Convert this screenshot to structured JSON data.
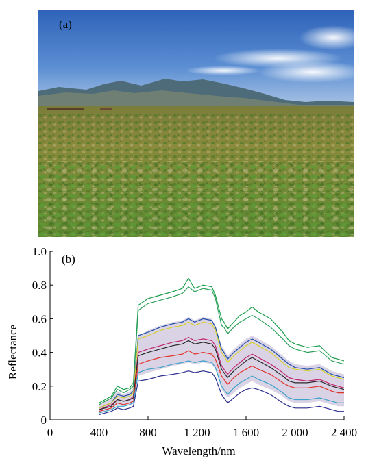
{
  "panel_a": {
    "label": "(a)"
  },
  "chart_data": {
    "type": "line",
    "panel_label": "(b)",
    "title": "",
    "xlabel": "Wavelength/nm",
    "ylabel": "Reflectance",
    "xlim": [
      0,
      2400
    ],
    "ylim": [
      0,
      1.0
    ],
    "x_ticks": [
      0,
      400,
      800,
      1200,
      1600,
      2000,
      2400
    ],
    "x_tick_labels": [
      "0",
      "400",
      "800",
      "1 200",
      "1 600",
      "2 000",
      "2 400"
    ],
    "y_ticks": [
      0,
      0.2,
      0.4,
      0.6,
      0.8,
      1.0
    ],
    "y_tick_labels": [
      "0",
      "0.2",
      "0.4",
      "0.6",
      "0.8",
      "1.0"
    ],
    "grid": false,
    "legend": "none",
    "x": [
      400,
      500,
      550,
      600,
      650,
      680,
      720,
      800,
      900,
      1000,
      1080,
      1130,
      1180,
      1250,
      1320,
      1350,
      1400,
      1420,
      1450,
      1500,
      1550,
      1600,
      1650,
      1700,
      1800,
      1900,
      1950,
      2000,
      2100,
      2200,
      2300,
      2350,
      2400
    ],
    "representative_series": [
      {
        "values": [
          0.1,
          0.14,
          0.2,
          0.18,
          0.19,
          0.22,
          0.68,
          0.72,
          0.74,
          0.76,
          0.78,
          0.84,
          0.78,
          0.8,
          0.79,
          0.74,
          0.6,
          0.58,
          0.54,
          0.58,
          0.62,
          0.64,
          0.67,
          0.64,
          0.6,
          0.52,
          0.47,
          0.45,
          0.43,
          0.44,
          0.37,
          0.36,
          0.35
        ],
        "color": "#1a9d4a"
      },
      {
        "values": [
          0.09,
          0.13,
          0.18,
          0.16,
          0.18,
          0.2,
          0.65,
          0.69,
          0.71,
          0.73,
          0.75,
          0.79,
          0.76,
          0.78,
          0.77,
          0.72,
          0.56,
          0.55,
          0.51,
          0.55,
          0.58,
          0.6,
          0.62,
          0.6,
          0.55,
          0.48,
          0.44,
          0.42,
          0.4,
          0.41,
          0.35,
          0.34,
          0.33
        ],
        "color": "#2ca05a"
      },
      {
        "values": [
          0.07,
          0.1,
          0.15,
          0.14,
          0.15,
          0.17,
          0.5,
          0.52,
          0.55,
          0.57,
          0.58,
          0.6,
          0.58,
          0.6,
          0.59,
          0.55,
          0.42,
          0.4,
          0.36,
          0.4,
          0.43,
          0.46,
          0.48,
          0.46,
          0.42,
          0.36,
          0.33,
          0.31,
          0.3,
          0.31,
          0.27,
          0.26,
          0.25
        ],
        "color": "#1f4fa8"
      },
      {
        "values": [
          0.07,
          0.1,
          0.14,
          0.13,
          0.14,
          0.16,
          0.48,
          0.5,
          0.53,
          0.55,
          0.56,
          0.58,
          0.56,
          0.58,
          0.57,
          0.53,
          0.4,
          0.38,
          0.34,
          0.38,
          0.41,
          0.44,
          0.46,
          0.44,
          0.4,
          0.34,
          0.31,
          0.3,
          0.29,
          0.3,
          0.26,
          0.25,
          0.24
        ],
        "color": "#d4d22a"
      },
      {
        "values": [
          0.06,
          0.09,
          0.12,
          0.11,
          0.12,
          0.14,
          0.4,
          0.42,
          0.44,
          0.46,
          0.47,
          0.49,
          0.47,
          0.48,
          0.47,
          0.44,
          0.32,
          0.3,
          0.27,
          0.31,
          0.34,
          0.37,
          0.39,
          0.37,
          0.33,
          0.28,
          0.25,
          0.24,
          0.23,
          0.24,
          0.21,
          0.2,
          0.19
        ],
        "color": "#c0266e"
      },
      {
        "values": [
          0.06,
          0.08,
          0.12,
          0.11,
          0.12,
          0.13,
          0.38,
          0.4,
          0.42,
          0.44,
          0.45,
          0.47,
          0.45,
          0.46,
          0.45,
          0.42,
          0.3,
          0.28,
          0.25,
          0.29,
          0.32,
          0.35,
          0.37,
          0.35,
          0.31,
          0.26,
          0.23,
          0.22,
          0.22,
          0.23,
          0.2,
          0.19,
          0.18
        ],
        "color": "#2a2a2a"
      },
      {
        "values": [
          0.05,
          0.07,
          0.1,
          0.09,
          0.1,
          0.11,
          0.33,
          0.35,
          0.37,
          0.38,
          0.39,
          0.41,
          0.39,
          0.4,
          0.39,
          0.36,
          0.26,
          0.24,
          0.21,
          0.25,
          0.28,
          0.3,
          0.32,
          0.3,
          0.27,
          0.22,
          0.2,
          0.19,
          0.19,
          0.2,
          0.17,
          0.16,
          0.16
        ],
        "color": "#e0342a"
      },
      {
        "values": [
          0.04,
          0.06,
          0.08,
          0.08,
          0.09,
          0.1,
          0.28,
          0.3,
          0.31,
          0.33,
          0.34,
          0.35,
          0.34,
          0.35,
          0.34,
          0.31,
          0.2,
          0.18,
          0.15,
          0.19,
          0.22,
          0.24,
          0.26,
          0.24,
          0.21,
          0.16,
          0.13,
          0.12,
          0.12,
          0.13,
          0.11,
          0.1,
          0.1
        ],
        "color": "#3aa3c9"
      },
      {
        "values": [
          0.03,
          0.05,
          0.07,
          0.06,
          0.07,
          0.08,
          0.23,
          0.24,
          0.26,
          0.27,
          0.28,
          0.29,
          0.28,
          0.29,
          0.28,
          0.25,
          0.15,
          0.13,
          0.1,
          0.13,
          0.16,
          0.18,
          0.19,
          0.18,
          0.15,
          0.1,
          0.08,
          0.07,
          0.07,
          0.08,
          0.06,
          0.05,
          0.05
        ],
        "color": "#2b2f8f"
      }
    ],
    "fill_band": {
      "lower": [
        0.04,
        0.06,
        0.09,
        0.08,
        0.09,
        0.1,
        0.26,
        0.28,
        0.3,
        0.32,
        0.33,
        0.34,
        0.33,
        0.34,
        0.33,
        0.3,
        0.18,
        0.16,
        0.13,
        0.16,
        0.19,
        0.21,
        0.23,
        0.21,
        0.18,
        0.14,
        0.11,
        0.1,
        0.1,
        0.11,
        0.09,
        0.08,
        0.08
      ],
      "upper": [
        0.09,
        0.13,
        0.17,
        0.15,
        0.17,
        0.19,
        0.5,
        0.53,
        0.56,
        0.58,
        0.59,
        0.61,
        0.59,
        0.61,
        0.6,
        0.56,
        0.44,
        0.42,
        0.38,
        0.42,
        0.45,
        0.48,
        0.5,
        0.48,
        0.44,
        0.38,
        0.35,
        0.33,
        0.32,
        0.33,
        0.29,
        0.28,
        0.27
      ]
    },
    "colors": {
      "background": "#ffffff",
      "axis": "#000000"
    }
  }
}
